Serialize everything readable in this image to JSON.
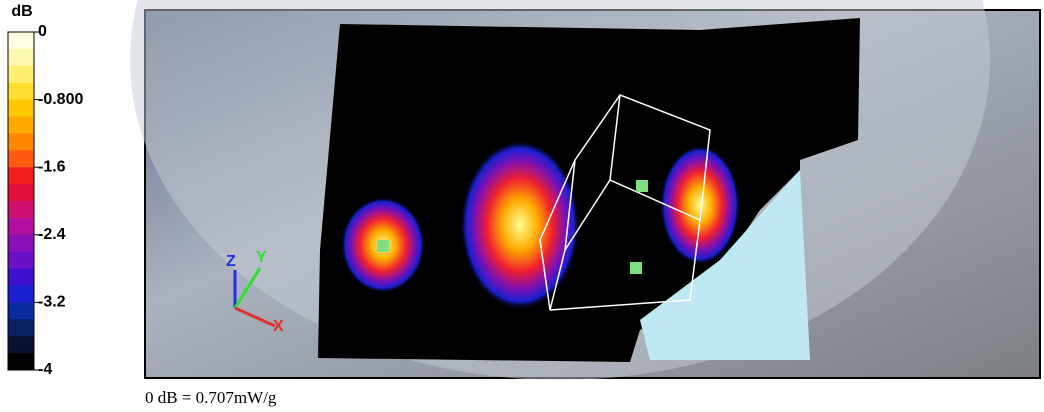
{
  "colorbar": {
    "unit": "dB",
    "lim": [
      -4,
      0
    ],
    "ticks": [
      0,
      {
        "value": -0.8,
        "label": "-0.800"
      },
      -1.6,
      -2.4,
      -3.2,
      -4
    ],
    "colors": [
      "#fffee0",
      "#fff8b0",
      "#ffef70",
      "#ffe030",
      "#ffc800",
      "#ffaa00",
      "#ff8800",
      "#ff5a10",
      "#f02020",
      "#e0103a",
      "#d01070",
      "#b010a0",
      "#8c10b8",
      "#6a10c8",
      "#4010d0",
      "#1a20d0",
      "#0a2aa0",
      "#0a2060",
      "#0a1230",
      "#000000"
    ]
  },
  "image": {
    "axis_labels": [
      "Z",
      "Y",
      "X"
    ]
  },
  "caption": "0 dB = 0.707mW/g"
}
